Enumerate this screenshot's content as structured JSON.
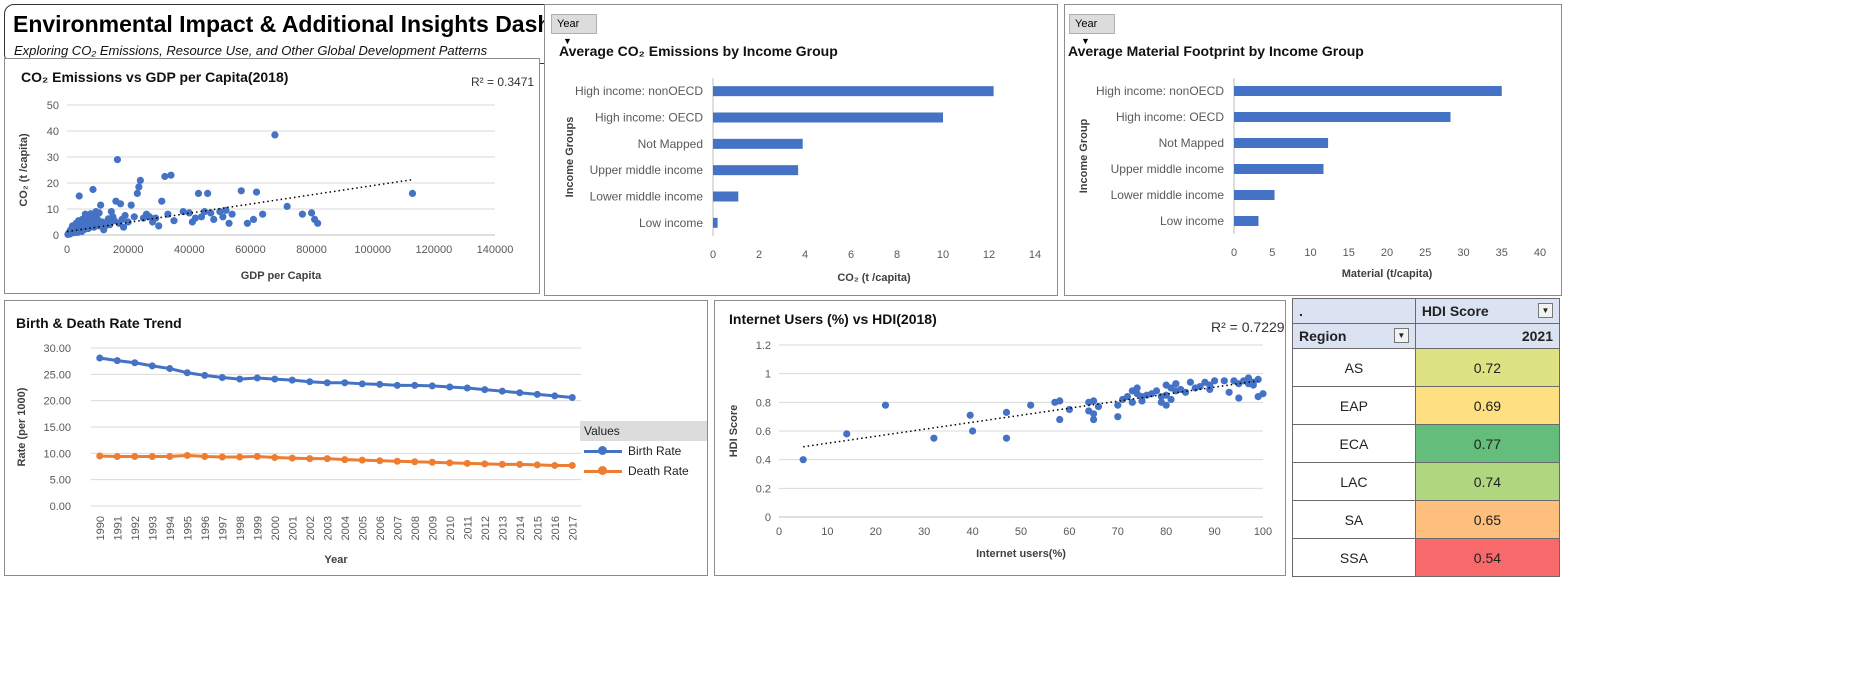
{
  "dashboard": {
    "title": "Environmental Impact & Additional Insights Dashboard",
    "subtitle": "Exploring CO₂ Emissions, Resource Use, and Other Global Development Patterns"
  },
  "colors": {
    "series_blue": "#4472c4",
    "series_orange": "#ed7d31",
    "grid": "#d9d9d9"
  },
  "filter": {
    "year_label": "Year"
  },
  "chart_data": [
    {
      "id": "co2_gdp",
      "type": "scatter",
      "title": "CO₂ Emissions vs GDP per Capita(2018)",
      "xlabel": "GDP per Capita",
      "ylabel": "CO₂ (t /capita)",
      "xlim": [
        0,
        140000
      ],
      "ylim": [
        0,
        50
      ],
      "xticks": [
        "0",
        "20000",
        "40000",
        "60000",
        "80000",
        "100000",
        "120000",
        "140000"
      ],
      "yticks": [
        "0",
        "10",
        "20",
        "30",
        "40",
        "50"
      ],
      "r2_label": "R² = 0.3471",
      "trendline": [
        [
          0,
          1.3
        ],
        [
          113000,
          21.3
        ]
      ],
      "points": [
        [
          300,
          0.2
        ],
        [
          500,
          0.5
        ],
        [
          800,
          1.2
        ],
        [
          1000,
          0.4
        ],
        [
          1200,
          2.0
        ],
        [
          1500,
          0.8
        ],
        [
          1800,
          3.5
        ],
        [
          2000,
          1.5
        ],
        [
          2300,
          0.9
        ],
        [
          2500,
          2.8
        ],
        [
          2800,
          1.6
        ],
        [
          3000,
          4.5
        ],
        [
          3200,
          2.2
        ],
        [
          3500,
          1.0
        ],
        [
          3800,
          5.5
        ],
        [
          4000,
          15.0
        ],
        [
          4200,
          3.0
        ],
        [
          4500,
          2.0
        ],
        [
          4800,
          1.3
        ],
        [
          5000,
          6.0
        ],
        [
          5200,
          4.8
        ],
        [
          5500,
          3.2
        ],
        [
          5800,
          2.2
        ],
        [
          6000,
          8.0
        ],
        [
          6200,
          5.0
        ],
        [
          6500,
          4.0
        ],
        [
          6800,
          7.0
        ],
        [
          7000,
          2.5
        ],
        [
          7300,
          5.8
        ],
        [
          7500,
          3.5
        ],
        [
          7800,
          8.2
        ],
        [
          8000,
          4.5
        ],
        [
          8300,
          6.5
        ],
        [
          8500,
          17.5
        ],
        [
          8800,
          3.0
        ],
        [
          9000,
          5.5
        ],
        [
          9300,
          7.5
        ],
        [
          9500,
          9.0
        ],
        [
          9800,
          4.0
        ],
        [
          10000,
          6.0
        ],
        [
          10300,
          3.5
        ],
        [
          10500,
          8.5
        ],
        [
          11000,
          11.5
        ],
        [
          11500,
          5.0
        ],
        [
          12000,
          2.0
        ],
        [
          12500,
          4.5
        ],
        [
          13000,
          3.8
        ],
        [
          13500,
          6.2
        ],
        [
          14000,
          4.0
        ],
        [
          14500,
          9.0
        ],
        [
          15000,
          7.0
        ],
        [
          15500,
          5.5
        ],
        [
          16000,
          13.0
        ],
        [
          16500,
          29.0
        ],
        [
          17000,
          4.5
        ],
        [
          17500,
          12.0
        ],
        [
          18000,
          6.0
        ],
        [
          18500,
          3.0
        ],
        [
          19000,
          7.5
        ],
        [
          20000,
          5.0
        ],
        [
          21000,
          11.5
        ],
        [
          22000,
          7.0
        ],
        [
          23000,
          16.0
        ],
        [
          23500,
          18.5
        ],
        [
          24000,
          21.0
        ],
        [
          25000,
          6.5
        ],
        [
          26000,
          8.0
        ],
        [
          27000,
          7.0
        ],
        [
          28000,
          5.0
        ],
        [
          29000,
          6.5
        ],
        [
          30000,
          3.5
        ],
        [
          31000,
          13.0
        ],
        [
          32000,
          22.5
        ],
        [
          33000,
          8.0
        ],
        [
          34000,
          23.0
        ],
        [
          35000,
          5.5
        ],
        [
          38000,
          9.0
        ],
        [
          40000,
          8.5
        ],
        [
          41000,
          5.0
        ],
        [
          42000,
          6.5
        ],
        [
          43000,
          16.0
        ],
        [
          44000,
          7.0
        ],
        [
          45000,
          9.0
        ],
        [
          46000,
          16.0
        ],
        [
          47000,
          8.5
        ],
        [
          48000,
          6.0
        ],
        [
          50000,
          9.0
        ],
        [
          51000,
          7.0
        ],
        [
          52000,
          9.5
        ],
        [
          53000,
          4.5
        ],
        [
          54000,
          8.0
        ],
        [
          57000,
          17.0
        ],
        [
          59000,
          4.5
        ],
        [
          61000,
          6.0
        ],
        [
          62000,
          16.5
        ],
        [
          64000,
          8.0
        ],
        [
          68000,
          38.5
        ],
        [
          72000,
          11.0
        ],
        [
          77000,
          8.0
        ],
        [
          80000,
          8.5
        ],
        [
          81000,
          6.0
        ],
        [
          82000,
          4.5
        ],
        [
          113000,
          16.0
        ]
      ]
    },
    {
      "id": "co2_income",
      "type": "bar",
      "orientation": "horizontal",
      "title": "Average CO₂ Emissions by Income Group",
      "xlabel": "CO₂ (t /capita)",
      "ylabel": "Income Groups",
      "xlim": [
        0,
        14
      ],
      "xticks": [
        "0",
        "2",
        "4",
        "6",
        "8",
        "10",
        "12",
        "14"
      ],
      "categories": [
        "High income: nonOECD",
        "High income: OECD",
        "Not Mapped",
        "Upper middle income",
        "Lower middle income",
        "Low income"
      ],
      "values": [
        12.2,
        10.0,
        3.9,
        3.7,
        1.1,
        0.2
      ]
    },
    {
      "id": "material_income",
      "type": "bar",
      "orientation": "horizontal",
      "title": "Average Material Footprint by Income Group",
      "xlabel": "Material (t/capita)",
      "ylabel": "Income Group",
      "xlim": [
        0,
        40
      ],
      "xticks": [
        "0",
        "5",
        "10",
        "15",
        "20",
        "25",
        "30",
        "35",
        "40"
      ],
      "categories": [
        "High income: nonOECD",
        "High income: OECD",
        "Not Mapped",
        "Upper middle income",
        "Lower middle income",
        "Low income"
      ],
      "values": [
        35.0,
        28.3,
        12.3,
        11.7,
        5.3,
        3.2
      ]
    },
    {
      "id": "birth_death",
      "type": "line",
      "title": "Birth & Death Rate Trend",
      "xlabel": "Year",
      "ylabel": "Rate (per 1000)",
      "ylim": [
        0,
        30
      ],
      "yticks": [
        "0.00",
        "5.00",
        "10.00",
        "15.00",
        "20.00",
        "25.00",
        "30.00"
      ],
      "x": [
        "1990",
        "1991",
        "1992",
        "1993",
        "1994",
        "1995",
        "1996",
        "1997",
        "1998",
        "1999",
        "2000",
        "2001",
        "2002",
        "2003",
        "2004",
        "2005",
        "2006",
        "2007",
        "2008",
        "2009",
        "2010",
        "2011",
        "2012",
        "2013",
        "2014",
        "2015",
        "2016",
        "2017"
      ],
      "legend_title": "Values",
      "series": [
        {
          "name": "Birth Rate",
          "values": [
            28.1,
            27.6,
            27.2,
            26.6,
            26.1,
            25.3,
            24.8,
            24.4,
            24.1,
            24.3,
            24.1,
            23.9,
            23.6,
            23.4,
            23.4,
            23.2,
            23.1,
            22.9,
            22.9,
            22.8,
            22.6,
            22.4,
            22.1,
            21.8,
            21.5,
            21.2,
            20.9,
            20.6
          ]
        },
        {
          "name": "Death Rate",
          "values": [
            9.5,
            9.4,
            9.4,
            9.4,
            9.4,
            9.6,
            9.4,
            9.3,
            9.3,
            9.4,
            9.2,
            9.1,
            9.0,
            9.0,
            8.8,
            8.7,
            8.6,
            8.5,
            8.4,
            8.3,
            8.2,
            8.1,
            8.0,
            7.9,
            7.9,
            7.8,
            7.7,
            7.7
          ]
        }
      ]
    },
    {
      "id": "internet_hdi",
      "type": "scatter",
      "title": "Internet Users (%) vs HDI(2018)",
      "xlabel": "Internet users(%)",
      "ylabel": "HDI Score",
      "xlim": [
        0,
        100
      ],
      "ylim": [
        0,
        1.2
      ],
      "xticks": [
        "0",
        "10",
        "20",
        "30",
        "40",
        "50",
        "60",
        "70",
        "80",
        "90",
        "100"
      ],
      "yticks": [
        "0",
        "0.2",
        "0.4",
        "0.6",
        "0.8",
        "1",
        "1.2"
      ],
      "r2_label": "R² = 0.7229",
      "trendline": [
        [
          5,
          0.49
        ],
        [
          99,
          0.95
        ]
      ],
      "points": [
        [
          5,
          0.4
        ],
        [
          14,
          0.58
        ],
        [
          22,
          0.78
        ],
        [
          32,
          0.55
        ],
        [
          39.5,
          0.71
        ],
        [
          40,
          0.6
        ],
        [
          47,
          0.73
        ],
        [
          47,
          0.55
        ],
        [
          52,
          0.78
        ],
        [
          57,
          0.8
        ],
        [
          58,
          0.68
        ],
        [
          58,
          0.81
        ],
        [
          60,
          0.75
        ],
        [
          64,
          0.8
        ],
        [
          64,
          0.74
        ],
        [
          65,
          0.81
        ],
        [
          65,
          0.72
        ],
        [
          65,
          0.68
        ],
        [
          66,
          0.77
        ],
        [
          70,
          0.78
        ],
        [
          70,
          0.7
        ],
        [
          71,
          0.82
        ],
        [
          72,
          0.84
        ],
        [
          73,
          0.88
        ],
        [
          73,
          0.8
        ],
        [
          74,
          0.86
        ],
        [
          74,
          0.9
        ],
        [
          75,
          0.84
        ],
        [
          75,
          0.81
        ],
        [
          76,
          0.85
        ],
        [
          77,
          0.86
        ],
        [
          78,
          0.88
        ],
        [
          79,
          0.84
        ],
        [
          79,
          0.8
        ],
        [
          80,
          0.78
        ],
        [
          80,
          0.92
        ],
        [
          80,
          0.85
        ],
        [
          81,
          0.9
        ],
        [
          81,
          0.82
        ],
        [
          82,
          0.93
        ],
        [
          82,
          0.88
        ],
        [
          83,
          0.89
        ],
        [
          84,
          0.87
        ],
        [
          85,
          0.94
        ],
        [
          86,
          0.9
        ],
        [
          87,
          0.91
        ],
        [
          88,
          0.94
        ],
        [
          89,
          0.92
        ],
        [
          89,
          0.89
        ],
        [
          90,
          0.95
        ],
        [
          92,
          0.95
        ],
        [
          93,
          0.87
        ],
        [
          94,
          0.95
        ],
        [
          95,
          0.83
        ],
        [
          95,
          0.93
        ],
        [
          96,
          0.95
        ],
        [
          97,
          0.97
        ],
        [
          97,
          0.93
        ],
        [
          98,
          0.92
        ],
        [
          98,
          0.94
        ],
        [
          99,
          0.96
        ],
        [
          99,
          0.84
        ],
        [
          100,
          0.86
        ]
      ]
    }
  ],
  "hdi_table": {
    "corner": ".",
    "score_header": "HDI Score",
    "region_header": "Region",
    "year_header": "2021",
    "rows": [
      {
        "region": "AS",
        "score": "0.72",
        "color": "#dde383"
      },
      {
        "region": "EAP",
        "score": "0.69",
        "color": "#fedf81"
      },
      {
        "region": "ECA",
        "score": "0.77",
        "color": "#64bd7b"
      },
      {
        "region": "LAC",
        "score": "0.74",
        "color": "#b0d680"
      },
      {
        "region": "SA",
        "score": "0.65",
        "color": "#fdbf7b"
      },
      {
        "region": "SSA",
        "score": "0.54",
        "color": "#f8696b"
      }
    ]
  }
}
